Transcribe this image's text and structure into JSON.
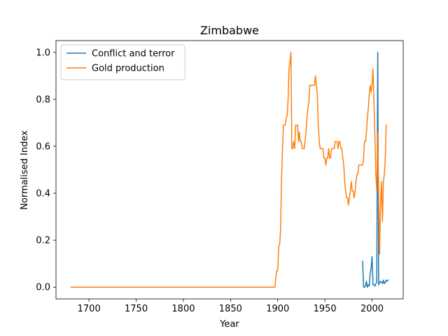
{
  "chart_data": {
    "type": "line",
    "title": "Zimbabwe",
    "xlabel": "Year",
    "ylabel": "Normalised Index",
    "xlim": [
      1665,
      2033
    ],
    "ylim": [
      -0.05,
      1.05
    ],
    "xticks": [
      1700,
      1750,
      1800,
      1850,
      1900,
      1950,
      2000
    ],
    "yticks": [
      0.0,
      0.2,
      0.4,
      0.6,
      0.8,
      1.0
    ],
    "grid": false,
    "legend": {
      "position": "upper-left",
      "entries": [
        "Conflict and terror",
        "Gold production"
      ]
    },
    "series": [
      {
        "name": "Conflict and terror",
        "color": "#1f77b4",
        "x": [
          1990,
          1991,
          1992,
          1993,
          1994,
          1995,
          1996,
          1997,
          1998,
          1999,
          2000,
          2001,
          2002,
          2003,
          2004,
          2005,
          2006,
          2007,
          2008,
          2009,
          2010,
          2011,
          2012,
          2013,
          2014,
          2015,
          2016,
          2017
        ],
        "y": [
          0.11,
          0.0,
          0.0,
          0.005,
          0.025,
          0.0,
          0.01,
          0.005,
          0.06,
          0.08,
          0.13,
          0.01,
          0.01,
          0.005,
          0.015,
          0.02,
          1.0,
          0.01,
          0.02,
          0.025,
          0.02,
          0.015,
          0.03,
          0.015,
          0.02,
          0.03,
          0.025,
          0.03
        ]
      },
      {
        "name": "Gold production",
        "color": "#ff7f0e",
        "x": [
          1681,
          1700,
          1750,
          1800,
          1850,
          1880,
          1897,
          1898,
          1899,
          1900,
          1901,
          1902,
          1903,
          1904,
          1905,
          1906,
          1907,
          1908,
          1909,
          1910,
          1911,
          1912,
          1913,
          1914,
          1915,
          1916,
          1917,
          1918,
          1919,
          1920,
          1921,
          1922,
          1923,
          1924,
          1925,
          1926,
          1927,
          1928,
          1929,
          1930,
          1931,
          1932,
          1933,
          1934,
          1935,
          1936,
          1937,
          1938,
          1939,
          1940,
          1941,
          1942,
          1943,
          1944,
          1945,
          1946,
          1947,
          1948,
          1949,
          1950,
          1951,
          1952,
          1953,
          1954,
          1955,
          1956,
          1957,
          1958,
          1959,
          1960,
          1961,
          1962,
          1963,
          1964,
          1965,
          1966,
          1967,
          1968,
          1969,
          1970,
          1971,
          1972,
          1973,
          1974,
          1975,
          1976,
          1977,
          1978,
          1979,
          1980,
          1981,
          1982,
          1983,
          1984,
          1985,
          1986,
          1987,
          1988,
          1989,
          1990,
          1991,
          1992,
          1993,
          1994,
          1995,
          1996,
          1997,
          1998,
          1999,
          2000,
          2001,
          2002,
          2003,
          2004,
          2005,
          2006,
          2007,
          2008,
          2009,
          2010,
          2011,
          2012,
          2013,
          2014,
          2015
        ],
        "y": [
          0.0,
          0.0,
          0.0,
          0.0,
          0.0,
          0.0,
          0.0,
          0.04,
          0.07,
          0.07,
          0.17,
          0.18,
          0.24,
          0.45,
          0.58,
          0.69,
          0.69,
          0.69,
          0.72,
          0.73,
          0.8,
          0.93,
          0.96,
          1.0,
          0.59,
          0.59,
          0.62,
          0.59,
          0.69,
          0.69,
          0.69,
          0.62,
          0.66,
          0.62,
          0.62,
          0.59,
          0.59,
          0.59,
          0.62,
          0.66,
          0.72,
          0.76,
          0.79,
          0.86,
          0.86,
          0.86,
          0.86,
          0.86,
          0.86,
          0.9,
          0.86,
          0.82,
          0.69,
          0.62,
          0.59,
          0.59,
          0.59,
          0.59,
          0.55,
          0.55,
          0.52,
          0.55,
          0.55,
          0.59,
          0.55,
          0.55,
          0.59,
          0.59,
          0.59,
          0.59,
          0.62,
          0.62,
          0.62,
          0.59,
          0.62,
          0.62,
          0.59,
          0.59,
          0.55,
          0.52,
          0.45,
          0.41,
          0.38,
          0.38,
          0.35,
          0.38,
          0.41,
          0.45,
          0.41,
          0.41,
          0.38,
          0.41,
          0.45,
          0.48,
          0.48,
          0.52,
          0.52,
          0.52,
          0.52,
          0.52,
          0.55,
          0.62,
          0.62,
          0.66,
          0.72,
          0.76,
          0.82,
          0.86,
          0.83,
          0.86,
          0.93,
          0.79,
          0.65,
          0.48,
          0.41,
          0.66,
          0.38,
          0.14,
          0.36,
          0.45,
          0.28,
          0.45,
          0.48,
          0.55,
          0.69
        ]
      }
    ]
  }
}
